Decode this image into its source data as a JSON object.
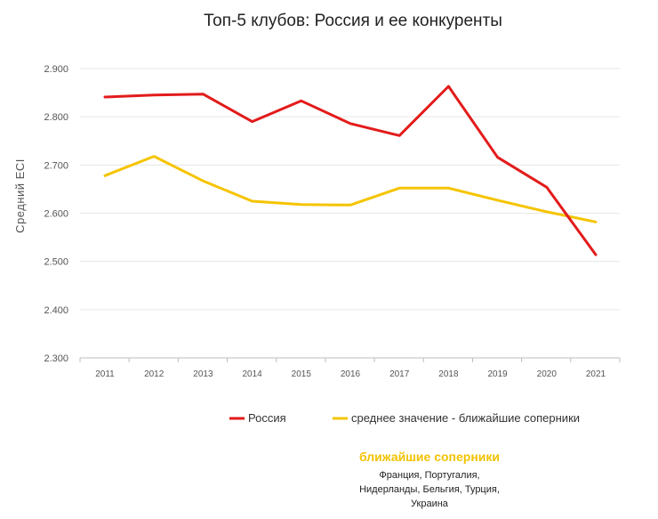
{
  "chart_data": {
    "type": "line",
    "title": "Топ-5 клубов: Россия и ее конкуренты",
    "ylabel": "Средний ECI",
    "xlabel": "",
    "x": [
      "2011",
      "2012",
      "2013",
      "2014",
      "2015",
      "2016",
      "2017",
      "2018",
      "2019",
      "2020",
      "2021"
    ],
    "yticks": [
      "2.300",
      "2.400",
      "2.500",
      "2.600",
      "2.700",
      "2.800",
      "2.900"
    ],
    "ylim": [
      2300,
      2900
    ],
    "grid": "horizontal",
    "legend_position": "bottom",
    "series": [
      {
        "name": "Россия",
        "color": "#e31b1b",
        "values": [
          2841,
          2845,
          2847,
          2790,
          2833,
          2786,
          2761,
          2863,
          2716,
          2654,
          2514
        ]
      },
      {
        "name": "среднее значение - ближайшие соперники",
        "color": "#f5c400",
        "values": [
          2678,
          2718,
          2667,
          2625,
          2618,
          2617,
          2652,
          2652,
          2627,
          2603,
          2582
        ]
      }
    ]
  },
  "note": {
    "title": "ближайшие соперники",
    "lines": [
      "Франция, Португалия,",
      "Нидерланды, Бельгия, Турция,",
      "Украина"
    ]
  }
}
